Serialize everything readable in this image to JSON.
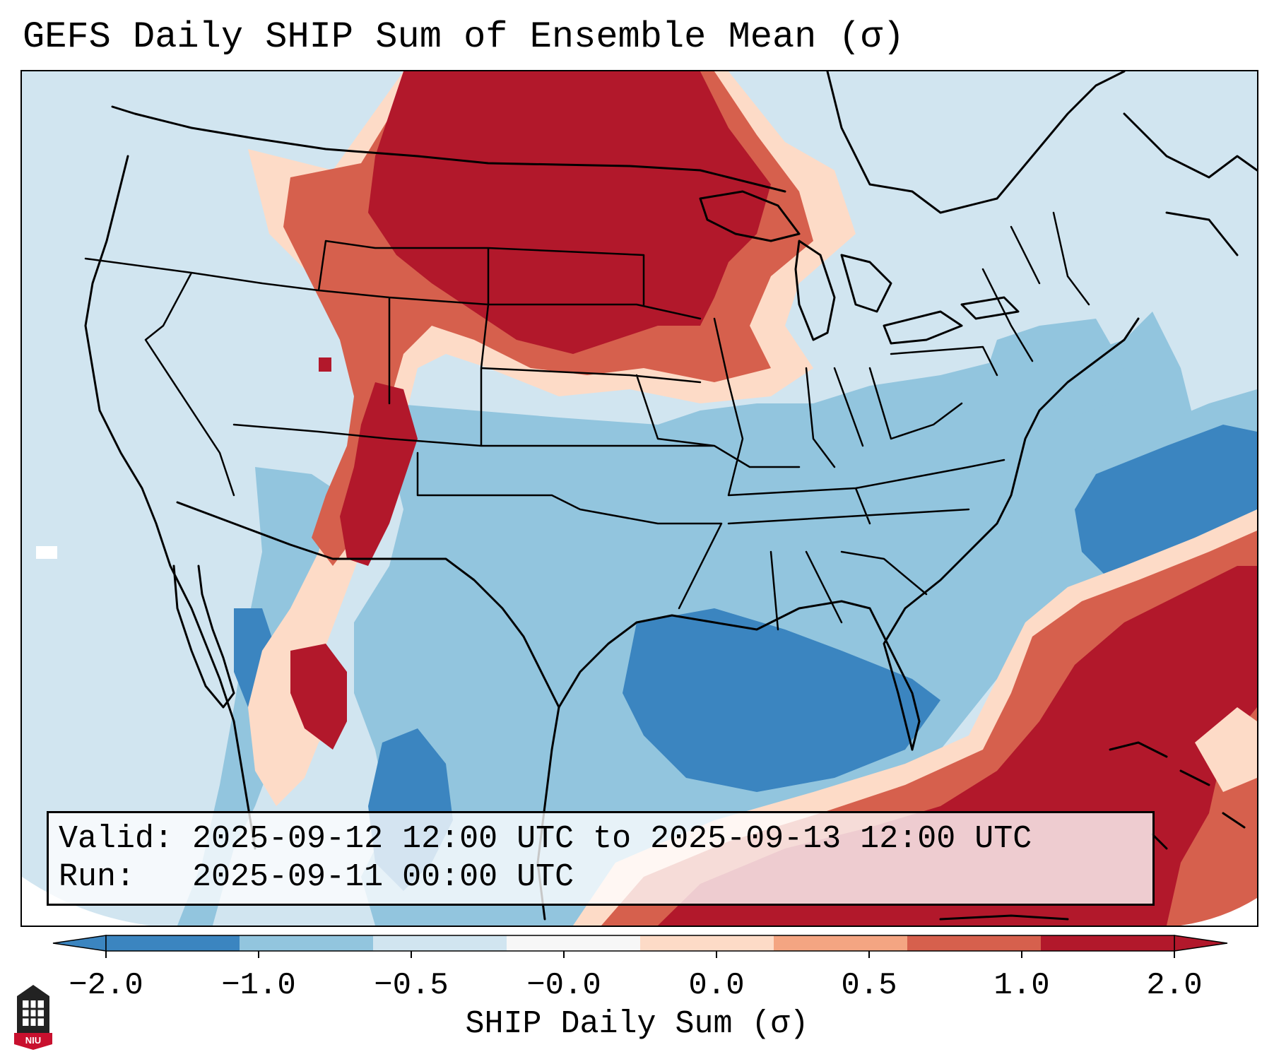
{
  "title": "GEFS Daily SHIP Sum of Ensemble Mean (σ)",
  "info": {
    "valid_line": "Valid: 2025-09-12 12:00 UTC to 2025-09-13 12:00 UTC",
    "run_line": "Run:   2025-09-11 00:00 UTC"
  },
  "colorbar": {
    "label": "SHIP Daily Sum (σ)",
    "ticks": [
      "−2.0",
      "−1.0",
      "−0.5",
      "−0.0",
      "0.0",
      "0.5",
      "1.0",
      "2.0"
    ],
    "colors": [
      "#3b85c0",
      "#92c5de",
      "#d1e5f0",
      "#f7f7f7",
      "#fddbc7",
      "#f4a582",
      "#d6604d",
      "#b2182b"
    ],
    "extend": "both"
  },
  "legend_colors": {
    "strong_positive": "#b2182b",
    "positive": "#d6604d",
    "weak_positive": "#f4a582",
    "slight_positive": "#fddbc7",
    "neutral": "#f7f7f7",
    "slight_negative": "#d1e5f0",
    "negative": "#92c5de",
    "strong_negative": "#3b85c0"
  },
  "logo": {
    "text": "NIU",
    "color": "#c8102e"
  }
}
